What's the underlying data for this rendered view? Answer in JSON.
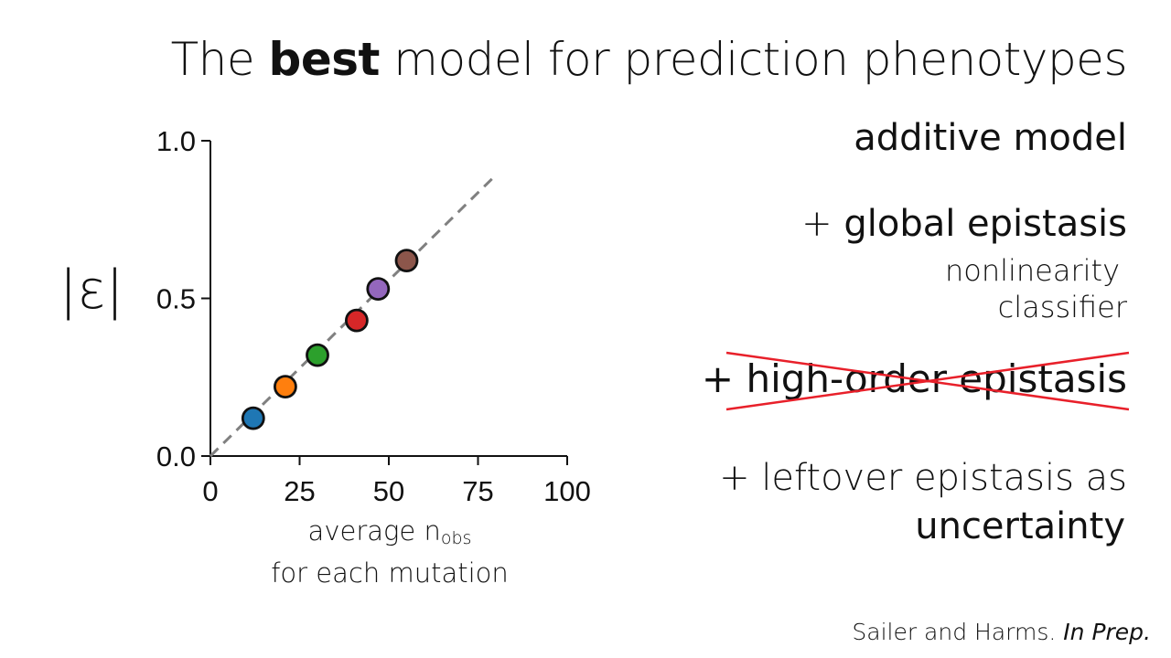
{
  "title": {
    "prefix": "The ",
    "emphasis": "best",
    "suffix": " model for prediction phenotypes"
  },
  "chart_data": {
    "type": "scatter",
    "ylabel": "|ε|",
    "xlabel_main": "average n",
    "xlabel_sub": "obs",
    "xlabel_line2": "for each mutation",
    "xlim": [
      0,
      100
    ],
    "ylim": [
      0,
      1
    ],
    "xticks": [
      0,
      25,
      50,
      75,
      100
    ],
    "yticks": [
      0.0,
      0.5,
      1.0
    ],
    "ytick_labels": [
      "0.0",
      "0.5",
      "1.0"
    ],
    "trend_line": {
      "x": [
        0,
        79
      ],
      "y": [
        0,
        0.88
      ],
      "color": "#808080",
      "style": "dashed"
    },
    "points": [
      {
        "x": 12,
        "y": 0.12,
        "color": "#1f77b4"
      },
      {
        "x": 21,
        "y": 0.22,
        "color": "#ff7f0e"
      },
      {
        "x": 30,
        "y": 0.32,
        "color": "#2ca02c"
      },
      {
        "x": 41,
        "y": 0.43,
        "color": "#d62728"
      },
      {
        "x": 47,
        "y": 0.53,
        "color": "#9467bd"
      },
      {
        "x": 55,
        "y": 0.62,
        "color": "#8c564b"
      }
    ],
    "grid": false
  },
  "panel": {
    "additive": "additive model",
    "global_prefix": "+ ",
    "global": "global epistasis",
    "nonlinearity": "nonlinearity",
    "classifier": "classifier",
    "high_order": "+ high-order epistasis",
    "strike_color": "#e8202a",
    "leftover": "+ leftover epistasis as",
    "uncertainty": "uncertainty"
  },
  "citation": {
    "authors": "Sailer and Harms. ",
    "venue": "In Prep."
  }
}
